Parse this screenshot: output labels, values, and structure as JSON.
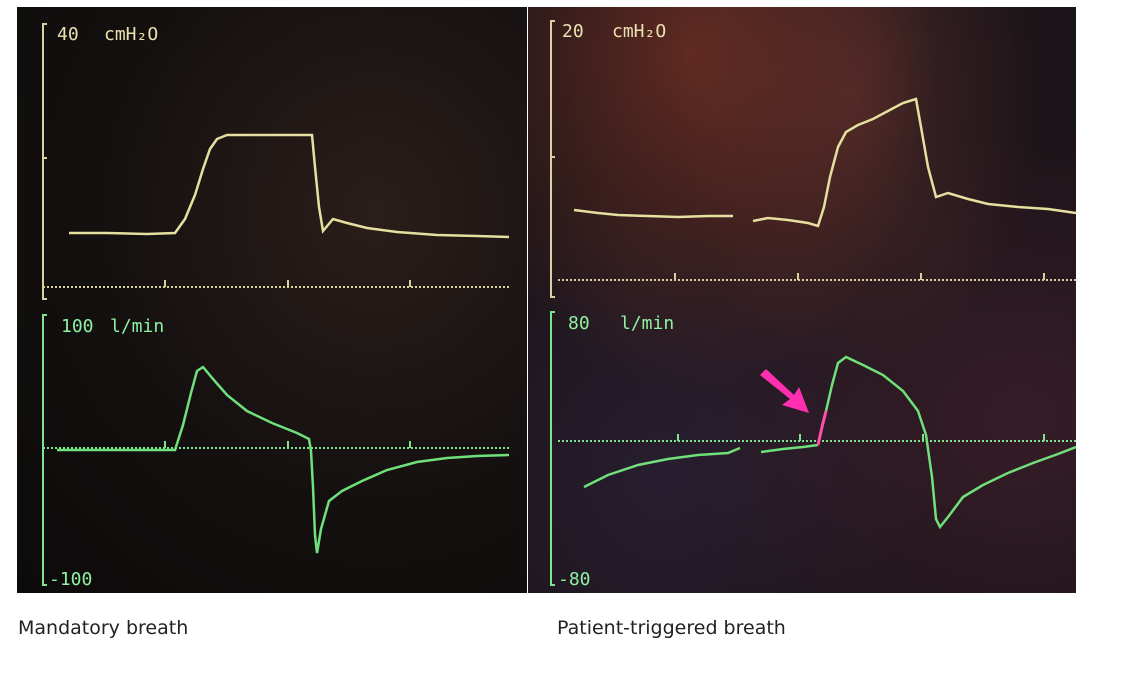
{
  "panels": [
    {
      "id": "left",
      "pressure": {
        "top_label": "40",
        "unit": "cmH₂O"
      },
      "flow": {
        "top_label": "100",
        "unit": "l/min",
        "bottom_label": "-100"
      },
      "caption": "Mandatory breath"
    },
    {
      "id": "right",
      "pressure": {
        "top_label": "20",
        "unit": "cmH₂O"
      },
      "flow": {
        "top_label": "80",
        "unit": "l/min",
        "bottom_label": "-80"
      },
      "caption": "Patient-triggered breath"
    }
  ],
  "colors": {
    "pressure_trace": "#e6e0a0",
    "flow_trace": "#6fe07a",
    "trigger_segment": "#ff4fa6",
    "arrow": "#ff2fb0"
  },
  "icons": [
    "trigger-arrow-icon"
  ]
}
